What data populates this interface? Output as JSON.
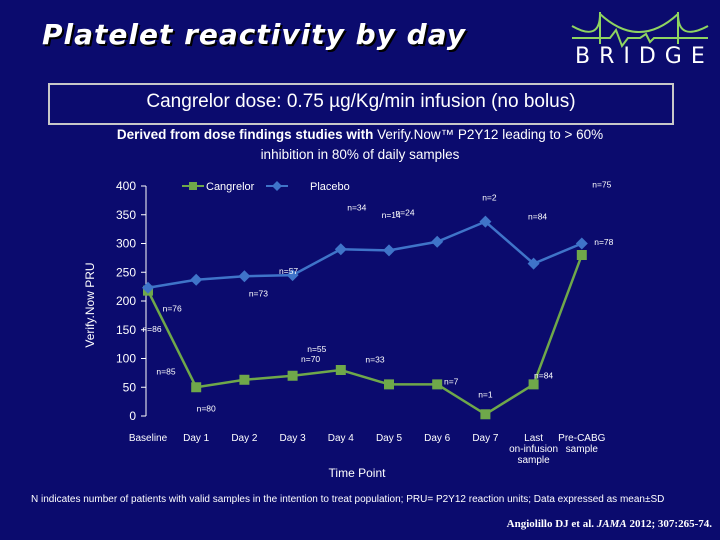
{
  "header": {
    "title": "Platelet reactivity by day",
    "logo_text": "BRIDGE",
    "subtitle": "Cangrelor dose: 0.75 µg/Kg/min  infusion (no bolus)",
    "note_bold": "Derived from dose findings studies with",
    "note_rest": " Verify.Now™ P2Y12 leading to > 60%",
    "note_line2": "inhibition in 80% of daily samples"
  },
  "chart_data": {
    "type": "line",
    "ylabel": "Verify.Now PRU",
    "xlabel": "Time Point",
    "ylim": [
      0,
      400
    ],
    "yticks": [
      0,
      50,
      100,
      150,
      200,
      250,
      300,
      350,
      400
    ],
    "categories": [
      "Baseline",
      "Day 1",
      "Day 2",
      "Day 3",
      "Day 4",
      "Day 5",
      "Day 6",
      "Day 7",
      "Last on-infusion sample",
      "Pre-CABG sample"
    ],
    "category_lines": [
      [
        "Baseline"
      ],
      [
        "Day 1"
      ],
      [
        "Day 2"
      ],
      [
        "Day 3"
      ],
      [
        "Day 4"
      ],
      [
        "Day 5"
      ],
      [
        "Day 6"
      ],
      [
        "Day 7"
      ],
      [
        "Last",
        "on-infusion",
        "sample"
      ],
      [
        "Pre-CABG",
        "sample"
      ]
    ],
    "legend_position": "top",
    "series": [
      {
        "name": "Cangrelor",
        "color": "#6fa84a",
        "marker": "square",
        "values": [
          218,
          50,
          63,
          70,
          80,
          55,
          55,
          3,
          55,
          280
        ],
        "n_labels": [
          "n=85",
          "n=80",
          "",
          "n=70",
          "n=55",
          "n=33",
          "n=7",
          "n=1",
          "n=84",
          "n=78"
        ]
      },
      {
        "name": "Placebo",
        "color": "#3f74c9",
        "marker": "diamond",
        "values": [
          223,
          237,
          243,
          245,
          290,
          288,
          303,
          338,
          265,
          300
        ],
        "n_labels": [
          "n=86",
          "n=76",
          "n=73",
          "n=57",
          "n=34",
          "n=24",
          "n=14",
          "n=2",
          "n=84",
          "n=75"
        ]
      }
    ]
  },
  "footer": {
    "footnote": "N indicates number of patients with valid samples in the intention to treat population; PRU= P2Y12 reaction units; Data expressed as mean±SD",
    "citation_authors": "Angiolillo DJ et al. ",
    "citation_journal": "JAMA",
    "citation_rest": " 2012; 307:265-74."
  }
}
